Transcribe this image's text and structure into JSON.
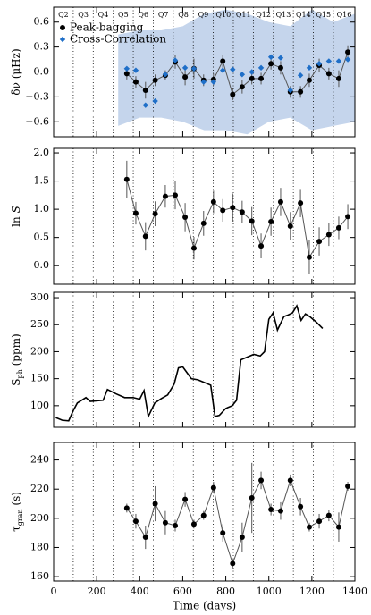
{
  "chart_data": [
    {
      "type": "errorbar",
      "ylabel": [
        {
          "text": "δν (μHz)"
        }
      ],
      "xlim": [
        0,
        1400
      ],
      "xticks": [
        0,
        200,
        400,
        600,
        800,
        1000,
        1200,
        1400
      ],
      "ylim": [
        -0.78,
        0.78
      ],
      "yticks": [
        {
          "value": -0.6,
          "label": "−0.6"
        },
        {
          "value": -0.3,
          "label": "−0.3"
        },
        {
          "value": 0,
          "label": "0.0"
        },
        {
          "value": 0.3,
          "label": "0.3"
        },
        {
          "value": 0.6,
          "label": "0.6"
        }
      ],
      "quarter_labels": [
        "Q2",
        "Q3",
        "Q4",
        "Q5",
        "Q6",
        "Q7",
        "Q8",
        "Q9",
        "Q10",
        "Q11",
        "Q12",
        "Q13",
        "Q14",
        "Q15",
        "Q16"
      ],
      "quarter_boundaries": [
        91,
        184,
        277,
        370,
        463,
        556,
        649,
        742,
        835,
        928,
        1021,
        1114,
        1207,
        1300
      ],
      "legend": "upper left",
      "band": {
        "color": "#c5d5ec",
        "x": [
          300,
          400,
          500,
          600,
          700,
          800,
          900,
          1000,
          1100,
          1200,
          1300,
          1400
        ],
        "upper": [
          0.45,
          0.5,
          0.5,
          0.55,
          0.7,
          0.75,
          0.7,
          0.6,
          0.55,
          0.75,
          0.6,
          0.7
        ],
        "lower": [
          -0.65,
          -0.55,
          -0.55,
          -0.6,
          -0.7,
          -0.7,
          -0.75,
          -0.6,
          -0.55,
          -0.7,
          -0.65,
          -0.6
        ]
      },
      "series": [
        {
          "name": "Peak-bagging",
          "color": "#000000",
          "line_color": "#555555",
          "marker": "circle",
          "x": [
            340,
            382,
            427,
            472,
            519,
            565,
            611,
            652,
            697,
            743,
            786,
            832,
            876,
            921,
            964,
            1010,
            1055,
            1100,
            1147,
            1188,
            1234,
            1279,
            1325,
            1367
          ],
          "values": [
            -0.02,
            -0.12,
            -0.22,
            -0.1,
            -0.04,
            0.12,
            -0.06,
            0.04,
            -0.1,
            -0.09,
            0.13,
            -0.27,
            -0.18,
            -0.08,
            -0.08,
            0.1,
            0.05,
            -0.24,
            -0.24,
            -0.1,
            0.08,
            -0.02,
            -0.08,
            0.24
          ],
          "errors": [
            0.07,
            0.07,
            0.1,
            0.07,
            0.06,
            0.08,
            0.1,
            0.12,
            0.07,
            0.07,
            0.08,
            0.07,
            0.08,
            0.07,
            0.07,
            0.07,
            0.08,
            0.07,
            0.07,
            0.08,
            0.08,
            0.07,
            0.1,
            0.08
          ]
        },
        {
          "name": "Cross-Correlation",
          "color": "#1f6fc8",
          "marker": "diamond",
          "x": [
            340,
            382,
            427,
            472,
            519,
            565,
            611,
            652,
            697,
            743,
            786,
            832,
            876,
            921,
            964,
            1010,
            1055,
            1100,
            1147,
            1188,
            1234,
            1279,
            1325,
            1367
          ],
          "values": [
            0.04,
            0.02,
            -0.4,
            -0.35,
            -0.03,
            0.14,
            0.05,
            0.04,
            -0.12,
            -0.12,
            0.02,
            0.03,
            -0.03,
            0.0,
            0.05,
            0.18,
            0.17,
            -0.22,
            -0.04,
            0.05,
            0.1,
            0.13,
            0.13,
            0.15
          ]
        }
      ]
    },
    {
      "type": "errorbar",
      "ylabel": [
        {
          "text": "ln "
        },
        {
          "text": "S",
          "style": "italic"
        }
      ],
      "xlim": [
        0,
        1400
      ],
      "xticks": [
        0,
        200,
        400,
        600,
        800,
        1000,
        1200,
        1400
      ],
      "ylim": [
        -0.33,
        2.08
      ],
      "yticks": [
        {
          "value": 0,
          "label": "0.0"
        },
        0.5,
        {
          "value": 1,
          "label": "1.0"
        },
        1.5,
        {
          "value": 2,
          "label": "2.0"
        }
      ],
      "series": [
        {
          "color": "#000000",
          "line_color": "#555555",
          "marker": "circle",
          "x": [
            340,
            382,
            427,
            472,
            519,
            565,
            611,
            652,
            697,
            743,
            786,
            832,
            876,
            921,
            964,
            1010,
            1055,
            1100,
            1147,
            1188,
            1234,
            1279,
            1325,
            1367
          ],
          "values": [
            1.53,
            0.93,
            0.52,
            0.92,
            1.23,
            1.25,
            0.86,
            0.31,
            0.75,
            1.13,
            0.98,
            1.03,
            0.95,
            0.79,
            0.35,
            0.78,
            1.13,
            0.7,
            1.11,
            0.15,
            0.43,
            0.55,
            0.67,
            0.87
          ],
          "errors": [
            0.33,
            0.2,
            0.25,
            0.22,
            0.2,
            0.25,
            0.25,
            0.2,
            0.22,
            0.2,
            0.2,
            0.25,
            0.2,
            0.25,
            0.22,
            0.25,
            0.25,
            0.25,
            0.25,
            0.3,
            0.25,
            0.2,
            0.2,
            0.22
          ]
        }
      ]
    },
    {
      "type": "line",
      "ylabel": [
        {
          "text": "S"
        },
        {
          "text": "ph",
          "style": "sub"
        },
        {
          "text": " (ppm)"
        }
      ],
      "xlim": [
        0,
        1400
      ],
      "xticks": [
        0,
        200,
        400,
        600,
        800,
        1000,
        1200,
        1400
      ],
      "ylim": [
        60,
        310
      ],
      "yticks": [
        100,
        150,
        200,
        250,
        300
      ],
      "series": [
        {
          "color": "#000000",
          "x": [
            10,
            40,
            70,
            90,
            110,
            150,
            170,
            230,
            250,
            290,
            330,
            370,
            400,
            420,
            440,
            470,
            500,
            530,
            560,
            580,
            600,
            640,
            670,
            700,
            730,
            750,
            770,
            800,
            830,
            850,
            870,
            900,
            930,
            960,
            980,
            1000,
            1020,
            1040,
            1070,
            1090,
            1110,
            1130,
            1150,
            1170,
            1190,
            1220,
            1250
          ],
          "values": [
            78,
            73,
            72,
            90,
            105,
            115,
            108,
            110,
            130,
            122,
            115,
            115,
            112,
            128,
            80,
            105,
            113,
            120,
            140,
            170,
            172,
            150,
            148,
            143,
            138,
            80,
            82,
            95,
            100,
            110,
            185,
            190,
            195,
            192,
            200,
            260,
            272,
            240,
            265,
            268,
            272,
            285,
            258,
            270,
            265,
            255,
            243
          ]
        }
      ]
    },
    {
      "type": "errorbar",
      "ylabel": [
        {
          "text": "τ"
        },
        {
          "text": "gran",
          "style": "sub"
        },
        {
          "text": " (s)"
        }
      ],
      "xlabel": "Time (days)",
      "xlim": [
        0,
        1400
      ],
      "xticks": [
        0,
        200,
        400,
        600,
        800,
        1000,
        1200,
        1400
      ],
      "ylim": [
        157,
        252
      ],
      "yticks": [
        160,
        180,
        200,
        220,
        240
      ],
      "series": [
        {
          "color": "#000000",
          "line_color": "#555555",
          "marker": "circle",
          "x": [
            340,
            382,
            427,
            472,
            519,
            565,
            611,
            652,
            697,
            743,
            786,
            832,
            876,
            921,
            964,
            1010,
            1055,
            1100,
            1147,
            1188,
            1234,
            1279,
            1325,
            1367
          ],
          "values": [
            207,
            198,
            187,
            210,
            197,
            195,
            213,
            196,
            202,
            221,
            190,
            169,
            187,
            214,
            226,
            206,
            205,
            226,
            208,
            194,
            198,
            202,
            194,
            222
          ],
          "errors": [
            3,
            5,
            8,
            12,
            8,
            4,
            5,
            3,
            3,
            4,
            6,
            3,
            10,
            24,
            6,
            4,
            6,
            4,
            6,
            3,
            5,
            4,
            10,
            3
          ]
        }
      ]
    }
  ]
}
